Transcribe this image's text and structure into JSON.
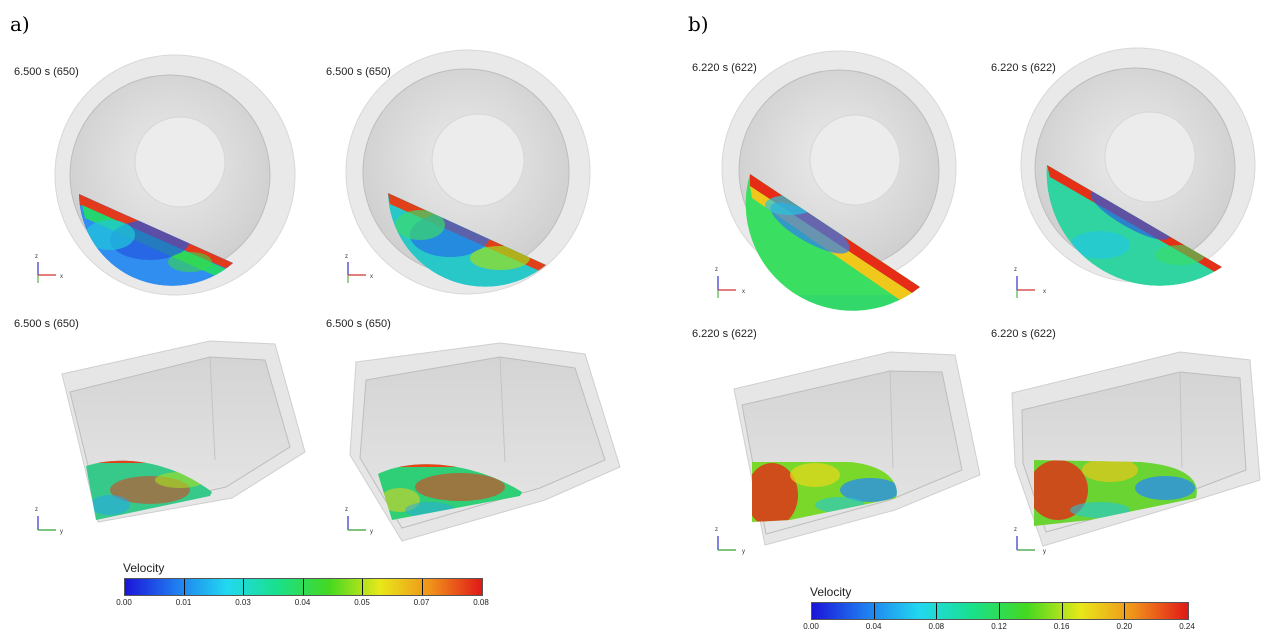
{
  "panel_a": {
    "label": "a)",
    "timestamps": [
      "6.500 s (650)",
      "6.500 s (650)",
      "6.500 s (650)",
      "6.500 s (650)"
    ],
    "colorbar": {
      "title": "Velocity",
      "ticks": [
        "0.00",
        "0.01",
        "0.03",
        "0.04",
        "0.05",
        "0.07",
        "0.08"
      ]
    }
  },
  "panel_b": {
    "label": "b)",
    "timestamps": [
      "6.220 s (622)",
      "6.220 s (622)",
      "6.220 s (622)",
      "6.220 s (622)"
    ],
    "colorbar": {
      "title": "Velocity",
      "ticks": [
        "0.00",
        "0.04",
        "0.08",
        "0.12",
        "0.16",
        "0.20",
        "0.24"
      ]
    }
  },
  "axes": {
    "z": "z",
    "x": "x",
    "y": "y"
  },
  "colormap": [
    "#1b14d8",
    "#1f7cf0",
    "#22d8f0",
    "#19e08a",
    "#44d820",
    "#e8e81a",
    "#f0901a",
    "#e01818"
  ]
}
